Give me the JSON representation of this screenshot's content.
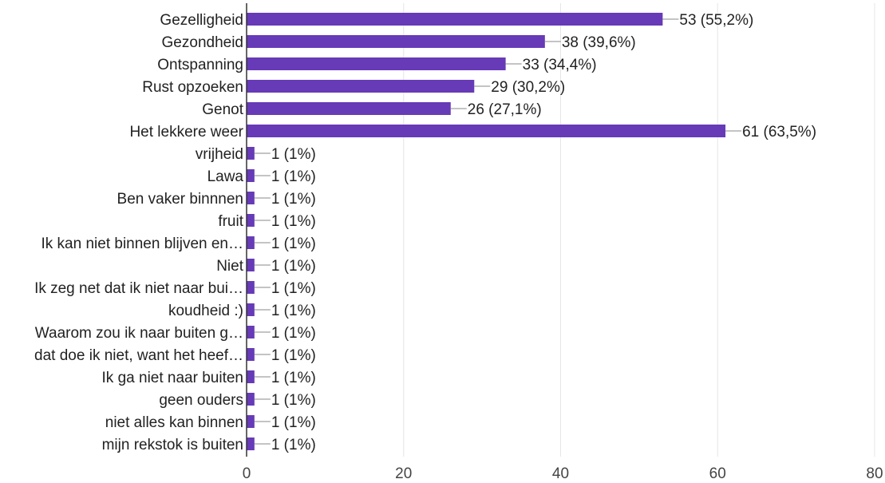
{
  "chart_data": {
    "type": "bar",
    "orientation": "horizontal",
    "categories": [
      "Gezelligheid",
      "Gezondheid",
      "Ontspanning",
      "Rust opzoeken",
      "Genot",
      "Het lekkere weer",
      "vrijheid",
      "Lawa",
      "Ben vaker binnnen",
      "fruit",
      "Ik kan niet binnen blijven en…",
      "Niet",
      "Ik zeg net dat ik niet naar bui…",
      "koudheid :)",
      "Waarom zou ik naar buiten g…",
      "dat doe ik niet, want het heef…",
      "Ik ga niet naar buiten",
      "geen ouders",
      "niet alles kan binnen",
      "mijn rekstok is buiten"
    ],
    "values": [
      53,
      38,
      33,
      29,
      26,
      61,
      1,
      1,
      1,
      1,
      1,
      1,
      1,
      1,
      1,
      1,
      1,
      1,
      1,
      1
    ],
    "data_labels": [
      "53 (55,2%)",
      "38 (39,6%)",
      "33 (34,4%)",
      "29 (30,2%)",
      "26 (27,1%)",
      "61 (63,5%)",
      "1 (1%)",
      "1 (1%)",
      "1 (1%)",
      "1 (1%)",
      "1 (1%)",
      "1 (1%)",
      "1 (1%)",
      "1 (1%)",
      "1 (1%)",
      "1 (1%)",
      "1 (1%)",
      "1 (1%)",
      "1 (1%)",
      "1 (1%)"
    ],
    "xlim": [
      0,
      80
    ],
    "xticks": [
      "0",
      "20",
      "40",
      "60",
      "80"
    ],
    "grid": true,
    "bar_color": "#673ab7"
  }
}
